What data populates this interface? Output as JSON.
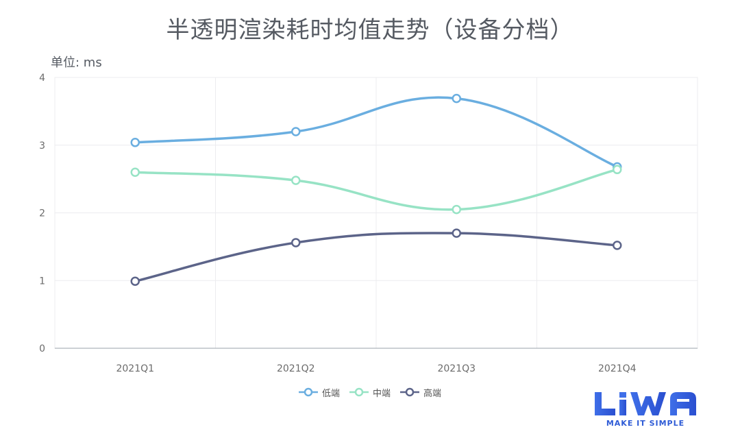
{
  "chart_data": {
    "type": "line",
    "title": "半透明渲染耗时均值走势（设备分档）",
    "unit_label": "单位: ms",
    "categories": [
      "2021Q1",
      "2021Q2",
      "2021Q3",
      "2021Q4"
    ],
    "ylim": [
      0,
      4
    ],
    "yticks": [
      0,
      1,
      2,
      3,
      4
    ],
    "smooth": true,
    "grid": true,
    "legend_position": "bottom-center",
    "series": [
      {
        "name": "低端",
        "color": "#6aaee0",
        "values": [
          3.04,
          3.2,
          3.69,
          2.68
        ]
      },
      {
        "name": "中端",
        "color": "#97e3c5",
        "values": [
          2.6,
          2.48,
          2.05,
          2.64
        ]
      },
      {
        "name": "高端",
        "color": "#5c6489",
        "values": [
          0.99,
          1.56,
          1.7,
          1.52
        ]
      }
    ]
  },
  "logo": {
    "text": "MAKE IT SIMPLE",
    "brand": "LiWA",
    "color": "#2e5bd6"
  }
}
